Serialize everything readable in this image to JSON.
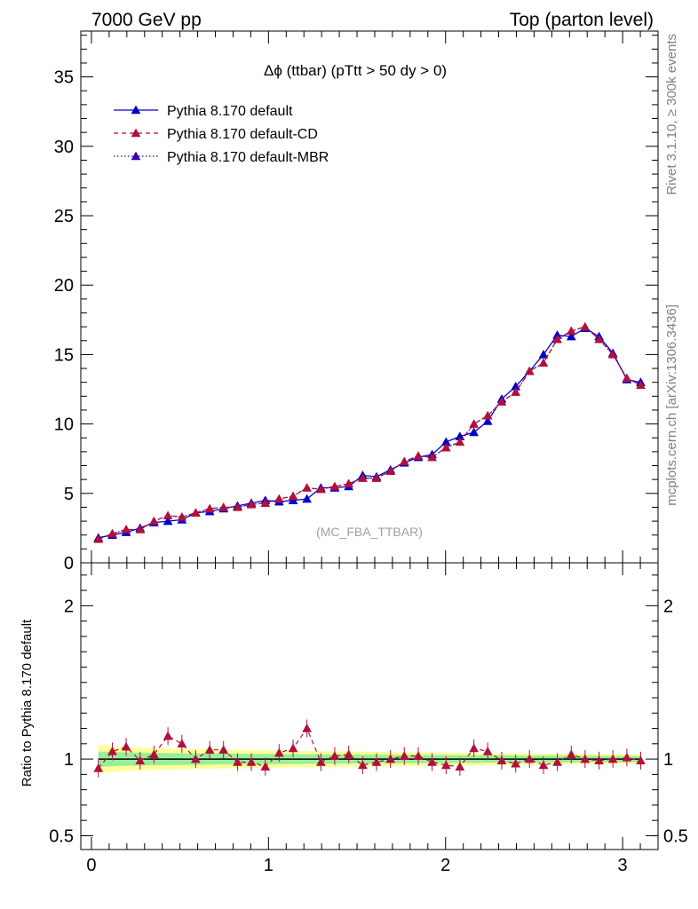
{
  "header": {
    "left": "7000 GeV pp",
    "right": "Top (parton level)"
  },
  "side_labels": {
    "rivet": "Rivet 3.1.10, ≥ 300k events",
    "mcplots": "mcplots.cern.ch [arXiv:1306.3436]"
  },
  "chart_data": [
    {
      "type": "line",
      "title_symbol": "Δϕ",
      "title": " (ttbar) (pTtt > 50 dy > 0)",
      "watermark": "(MC_FBA_TTBAR)",
      "xlim": [
        -0.06,
        3.2
      ],
      "ylim": [
        0,
        38.3
      ],
      "yticks": [
        0,
        5,
        10,
        15,
        20,
        25,
        30,
        35
      ],
      "ytick_labels": [
        "0",
        "5",
        "10",
        "15",
        "20",
        "25",
        "30",
        "35"
      ],
      "legend_position": "top-left",
      "x": [
        0.039,
        0.118,
        0.196,
        0.275,
        0.353,
        0.432,
        0.511,
        0.589,
        0.668,
        0.746,
        0.825,
        0.903,
        0.982,
        1.06,
        1.139,
        1.217,
        1.296,
        1.374,
        1.453,
        1.532,
        1.61,
        1.689,
        1.767,
        1.846,
        1.924,
        2.003,
        2.081,
        2.16,
        2.238,
        2.317,
        2.396,
        2.474,
        2.553,
        2.631,
        2.71,
        2.788,
        2.867,
        2.945,
        3.024,
        3.102
      ],
      "series": [
        {
          "name": "Pythia 8.170 default",
          "color": "#0000cc",
          "line": "solid",
          "values": [
            1.8,
            2.0,
            2.2,
            2.5,
            2.9,
            3.0,
            3.1,
            3.6,
            3.7,
            3.9,
            4.1,
            4.3,
            4.5,
            4.4,
            4.5,
            4.6,
            5.4,
            5.4,
            5.5,
            6.3,
            6.2,
            6.7,
            7.2,
            7.6,
            7.8,
            8.7,
            9.1,
            9.4,
            10.2,
            11.8,
            12.7,
            13.8,
            15.0,
            16.4,
            16.3,
            16.9,
            16.3,
            15.1,
            13.2,
            13.0
          ]
        },
        {
          "name": "Pythia 8.170 default-CD",
          "color": "#b0103a",
          "line": "dashed",
          "values": [
            1.7,
            2.1,
            2.4,
            2.4,
            3.0,
            3.4,
            3.3,
            3.6,
            3.9,
            4.0,
            4.0,
            4.2,
            4.3,
            4.6,
            4.8,
            5.4,
            5.3,
            5.5,
            5.7,
            6.1,
            6.1,
            6.6,
            7.3,
            7.7,
            7.6,
            8.3,
            8.7,
            10.0,
            10.6,
            11.6,
            12.3,
            13.8,
            14.4,
            16.1,
            16.7,
            17.0,
            16.1,
            15.0,
            13.3,
            12.8
          ]
        },
        {
          "name": "Pythia 8.170 default-MBR",
          "color": "#3a00aa",
          "line": "dotted",
          "values": [
            1.7,
            2.1,
            2.4,
            2.4,
            3.0,
            3.4,
            3.3,
            3.6,
            3.9,
            4.0,
            4.0,
            4.2,
            4.3,
            4.6,
            4.8,
            5.4,
            5.3,
            5.5,
            5.7,
            6.1,
            6.1,
            6.6,
            7.3,
            7.7,
            7.6,
            8.3,
            8.7,
            10.0,
            10.6,
            11.6,
            12.3,
            13.8,
            14.4,
            16.1,
            16.7,
            17.0,
            16.1,
            15.0,
            13.3,
            12.8
          ]
        }
      ]
    },
    {
      "type": "line",
      "ylabel": "Ratio to Pythia 8.170 default",
      "xlim": [
        -0.06,
        3.2
      ],
      "ylim": [
        0.41,
        2.28
      ],
      "yticks": [
        0.5,
        1,
        2
      ],
      "ytick_labels": [
        "0.5",
        "1",
        "2"
      ],
      "xticks": [
        0,
        1,
        2,
        3
      ],
      "xtick_labels": [
        "0",
        "1",
        "2",
        "3"
      ],
      "reference_line": 1.0,
      "band_yellow_halfwidth": [
        0.09,
        0.03
      ],
      "band_green_halfwidth": [
        0.05,
        0.02
      ],
      "ratio": [
        0.94,
        1.05,
        1.08,
        0.99,
        1.03,
        1.15,
        1.1,
        1.0,
        1.06,
        1.06,
        0.98,
        0.98,
        0.95,
        1.04,
        1.07,
        1.2,
        0.98,
        1.02,
        1.03,
        0.96,
        0.98,
        1.0,
        1.02,
        1.02,
        0.98,
        0.96,
        0.95,
        1.07,
        1.05,
        0.99,
        0.97,
        1.0,
        0.96,
        0.98,
        1.03,
        1.0,
        0.99,
        1.0,
        1.01,
        0.99
      ]
    }
  ]
}
